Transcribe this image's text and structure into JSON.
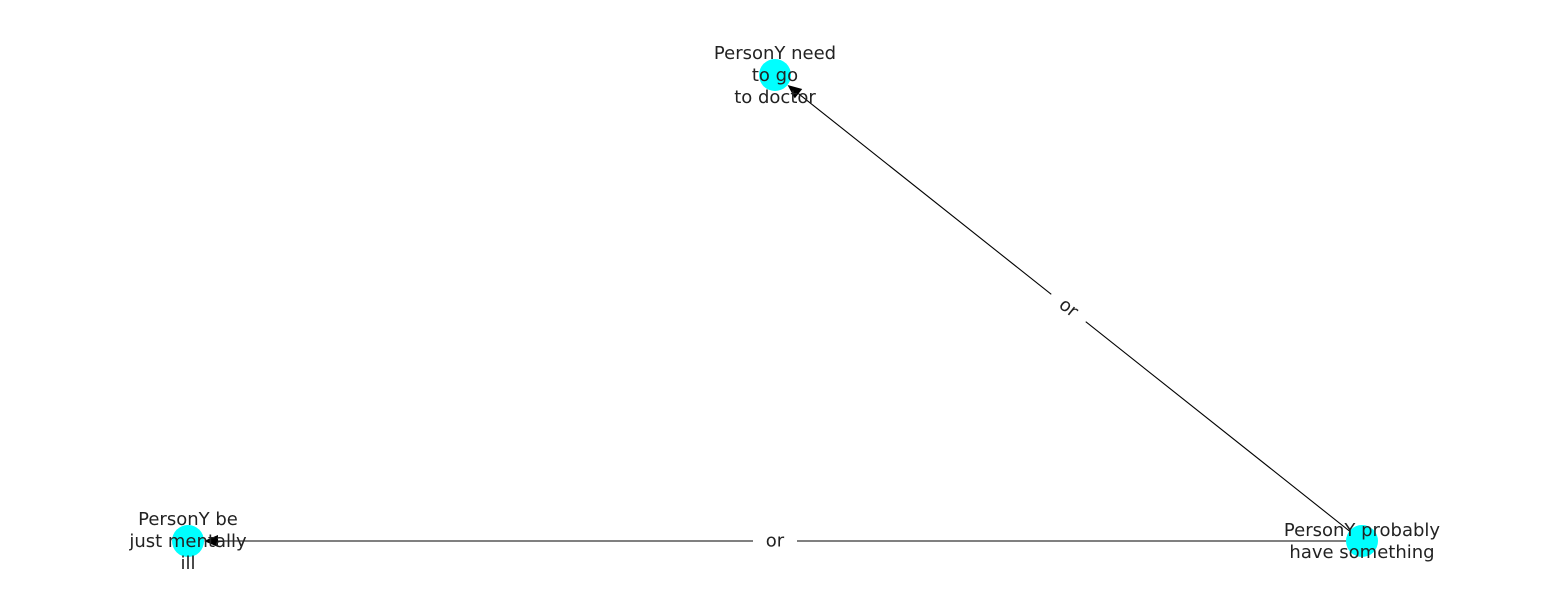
{
  "diagram": {
    "node_color": "#00ffff",
    "edge_color": "#000000",
    "text_color": "#222222",
    "background": "#ffffff",
    "nodes": [
      {
        "id": "need_doctor",
        "lines": [
          "PersonY need",
          "to go",
          "to doctor"
        ]
      },
      {
        "id": "mentally_ill",
        "lines": [
          "PersonY be",
          "just mentally",
          "ill"
        ]
      },
      {
        "id": "have_something",
        "lines": [
          "PersonY probably",
          "have something"
        ]
      }
    ],
    "edges": [
      {
        "from": "have_something",
        "to": "need_doctor",
        "label": "or"
      },
      {
        "from": "have_something",
        "to": "mentally_ill",
        "label": "or"
      }
    ]
  }
}
